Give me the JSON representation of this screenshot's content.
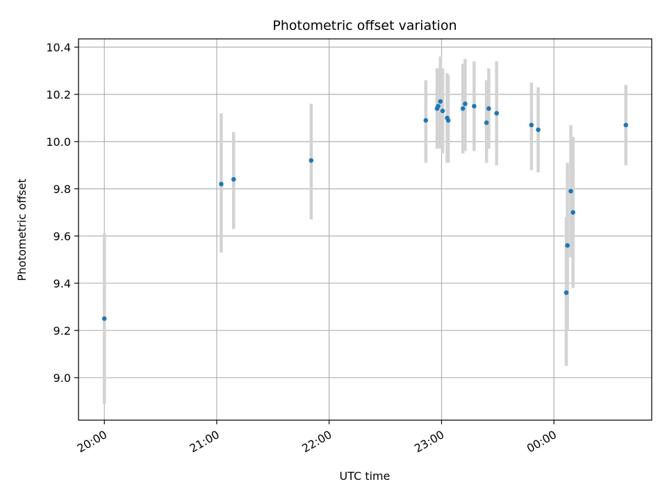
{
  "chart_data": {
    "type": "scatter",
    "title": "Photometric offset variation",
    "xlabel": "UTC time",
    "ylabel": "Photometric offset",
    "x_unit": "hours",
    "xlim": [
      19.77,
      24.87
    ],
    "ylim": [
      8.82,
      10.435
    ],
    "x_ticks": [
      {
        "value": 20,
        "label": "20:00"
      },
      {
        "value": 21,
        "label": "21:00"
      },
      {
        "value": 22,
        "label": "22:00"
      },
      {
        "value": 23,
        "label": "23:00"
      },
      {
        "value": 24,
        "label": "00:00"
      }
    ],
    "y_ticks": [
      {
        "value": 9.0,
        "label": "9.0"
      },
      {
        "value": 9.2,
        "label": "9.2"
      },
      {
        "value": 9.4,
        "label": "9.4"
      },
      {
        "value": 9.6,
        "label": "9.6"
      },
      {
        "value": 9.8,
        "label": "9.8"
      },
      {
        "value": 10.0,
        "label": "10.0"
      },
      {
        "value": 10.2,
        "label": "10.2"
      },
      {
        "value": 10.4,
        "label": "10.4"
      }
    ],
    "grid": true,
    "point_color": "#1f77b4",
    "errorbar_color": "#d3d3d3",
    "points": [
      {
        "x": 20.0,
        "y": 9.25,
        "lo": 8.89,
        "hi": 9.61
      },
      {
        "x": 21.04,
        "y": 9.82,
        "lo": 9.53,
        "hi": 10.12
      },
      {
        "x": 21.15,
        "y": 9.84,
        "lo": 9.63,
        "hi": 10.04
      },
      {
        "x": 21.84,
        "y": 9.92,
        "lo": 9.67,
        "hi": 10.16
      },
      {
        "x": 22.86,
        "y": 10.09,
        "lo": 9.91,
        "hi": 10.26
      },
      {
        "x": 22.96,
        "y": 10.14,
        "lo": 9.97,
        "hi": 10.31
      },
      {
        "x": 22.97,
        "y": 10.15,
        "lo": 9.98,
        "hi": 10.31
      },
      {
        "x": 22.99,
        "y": 10.17,
        "lo": 9.97,
        "hi": 10.36
      },
      {
        "x": 23.01,
        "y": 10.13,
        "lo": 9.95,
        "hi": 10.31
      },
      {
        "x": 23.05,
        "y": 10.1,
        "lo": 9.91,
        "hi": 10.29
      },
      {
        "x": 23.06,
        "y": 10.09,
        "lo": 9.91,
        "hi": 10.28
      },
      {
        "x": 23.19,
        "y": 10.14,
        "lo": 9.95,
        "hi": 10.33
      },
      {
        "x": 23.21,
        "y": 10.16,
        "lo": 9.96,
        "hi": 10.35
      },
      {
        "x": 23.29,
        "y": 10.15,
        "lo": 9.96,
        "hi": 10.34
      },
      {
        "x": 23.4,
        "y": 10.08,
        "lo": 9.91,
        "hi": 10.26
      },
      {
        "x": 23.42,
        "y": 10.14,
        "lo": 9.97,
        "hi": 10.31
      },
      {
        "x": 23.49,
        "y": 10.12,
        "lo": 9.9,
        "hi": 10.34
      },
      {
        "x": 23.8,
        "y": 10.07,
        "lo": 9.88,
        "hi": 10.25
      },
      {
        "x": 23.86,
        "y": 10.05,
        "lo": 9.87,
        "hi": 10.23
      },
      {
        "x": 24.11,
        "y": 9.36,
        "lo": 9.05,
        "hi": 9.68
      },
      {
        "x": 24.12,
        "y": 9.56,
        "lo": 9.2,
        "hi": 9.91
      },
      {
        "x": 24.15,
        "y": 9.79,
        "lo": 9.51,
        "hi": 10.07
      },
      {
        "x": 24.17,
        "y": 9.7,
        "lo": 9.38,
        "hi": 10.02
      },
      {
        "x": 24.64,
        "y": 10.07,
        "lo": 9.9,
        "hi": 10.24
      }
    ]
  }
}
